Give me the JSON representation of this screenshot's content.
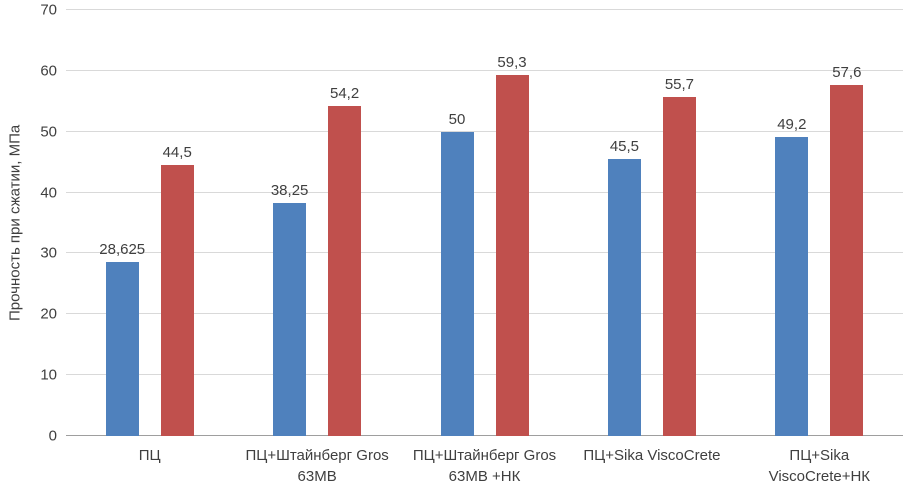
{
  "chart_data": {
    "type": "bar",
    "title": "",
    "xlabel": "",
    "ylabel": "Прочность при сжатии, МПа",
    "ylim": [
      0,
      70
    ],
    "yticks": [
      "0",
      "10",
      "20",
      "30",
      "40",
      "50",
      "60",
      "70"
    ],
    "grid": "horizontal",
    "legend": "none",
    "categories": [
      "ПЦ",
      "ПЦ+Штайнберг Gros 63МВ",
      "ПЦ+Штайнберг Gros 63МВ +НК",
      "ПЦ+Sika ViscoCrete",
      "ПЦ+Sika ViscoCrete+НК"
    ],
    "series": [
      {
        "color": "#4F81BD",
        "values": [
          28.625,
          38.25,
          50,
          45.5,
          49.2
        ],
        "labels": [
          "28,625",
          "38,25",
          "50",
          "45,5",
          "49,2"
        ]
      },
      {
        "color": "#C0504D",
        "values": [
          44.5,
          54.2,
          59.3,
          55.7,
          57.6
        ],
        "labels": [
          "44,5",
          "54,2",
          "59,3",
          "55,7",
          "57,6"
        ]
      }
    ]
  }
}
